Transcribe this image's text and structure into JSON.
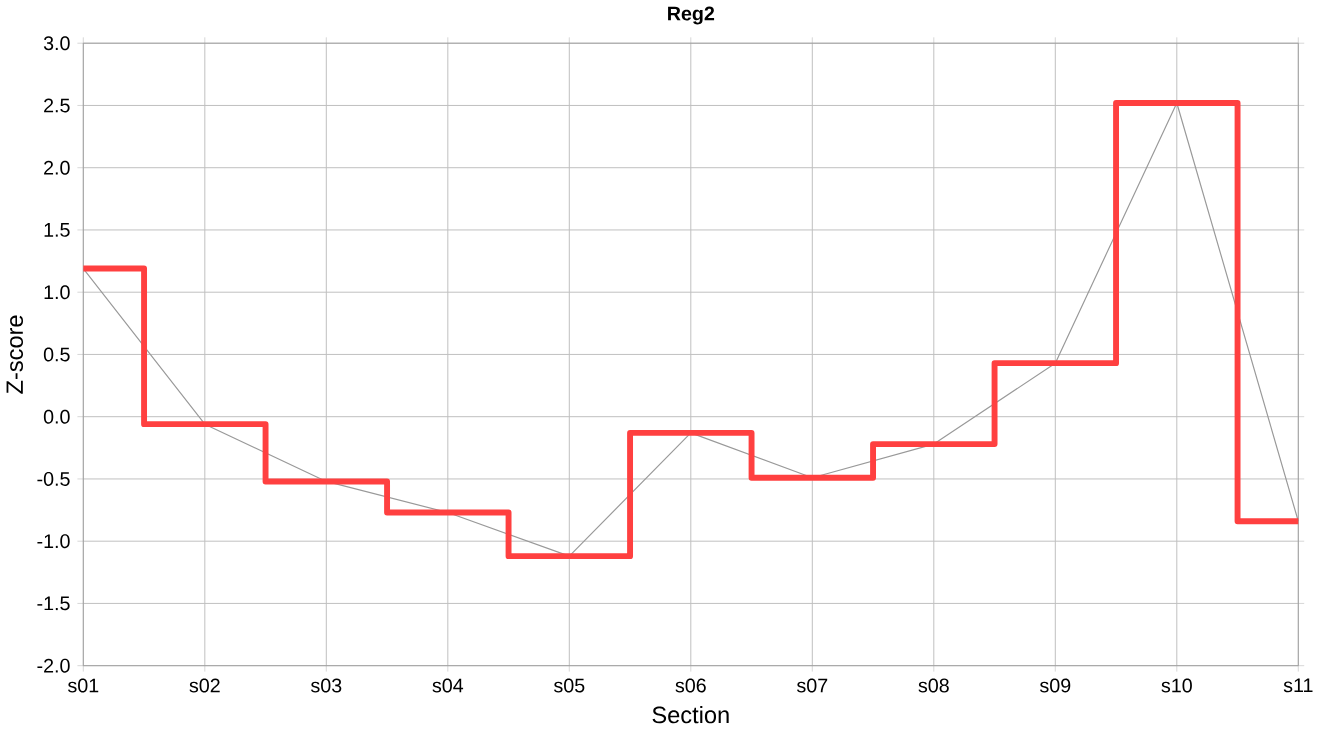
{
  "chart_data": {
    "type": "step",
    "title": "Reg2",
    "xlabel": "Section",
    "ylabel": "Z-score",
    "categories": [
      "s01",
      "s02",
      "s03",
      "s04",
      "s05",
      "s06",
      "s07",
      "s08",
      "s09",
      "s10",
      "s11"
    ],
    "series": [
      {
        "type": "line",
        "color": "#999999",
        "values": [
          1.19,
          -0.06,
          -0.52,
          -0.77,
          -1.12,
          -0.13,
          -0.49,
          -0.22,
          0.43,
          2.52,
          -0.84
        ]
      },
      {
        "color": "#ff4040",
        "values": [
          1.19,
          -0.06,
          -0.52,
          -0.77,
          -1.12,
          -0.13,
          -0.49,
          -0.22,
          0.43,
          2.52,
          -0.84
        ]
      }
    ],
    "ylim": [
      -2.0,
      3.0
    ],
    "yticks": [
      {
        "value": -2,
        "label": "-2.0"
      },
      {
        "value": -1.5,
        "label": "-1.5"
      },
      {
        "value": -1,
        "label": "-1.0"
      },
      {
        "value": -0.5,
        "label": "-0.5"
      },
      {
        "value": 0,
        "label": "0.0"
      },
      {
        "value": 0.5,
        "label": "0.5"
      },
      {
        "value": 1,
        "label": "1.0"
      },
      {
        "value": 1.5,
        "label": "1.5"
      },
      {
        "value": 2,
        "label": "2.0"
      },
      {
        "value": 2.5,
        "label": "2.5"
      },
      {
        "value": 3,
        "label": "3.0"
      }
    ],
    "grid": true,
    "marker": "none"
  }
}
